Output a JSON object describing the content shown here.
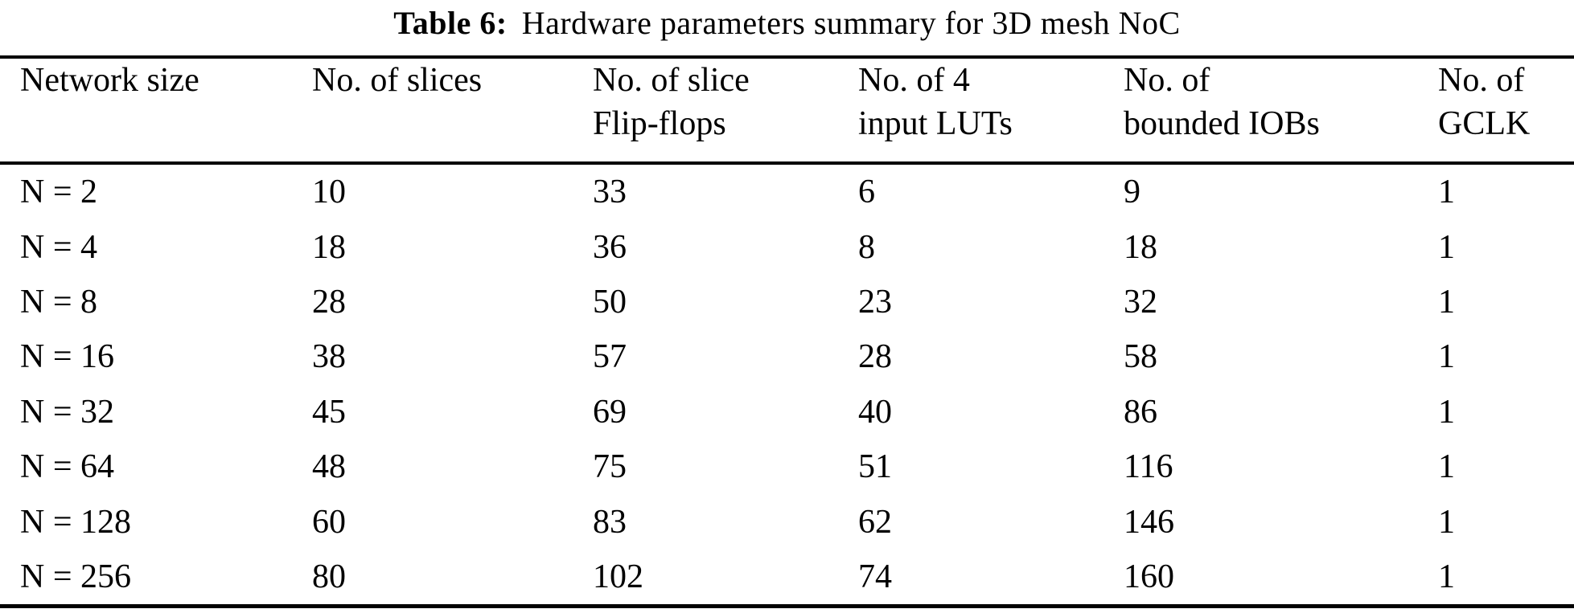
{
  "caption": {
    "label": "Table 6:",
    "text": "Hardware parameters summary for 3D mesh NoC"
  },
  "table": {
    "columns": [
      {
        "key": "network-size",
        "line1": "Network size",
        "line2": ""
      },
      {
        "key": "slices",
        "line1": "No. of slices",
        "line2": ""
      },
      {
        "key": "slice-flip-flops",
        "line1": "No. of slice",
        "line2": "Flip-flops"
      },
      {
        "key": "input-luts",
        "line1": "No. of 4",
        "line2": "input LUTs"
      },
      {
        "key": "bounded-iobs",
        "line1": "No. of",
        "line2": "bounded IOBs"
      },
      {
        "key": "gclk",
        "line1": "No. of",
        "line2": "GCLK"
      }
    ],
    "rows": [
      [
        "N = 2",
        "10",
        "33",
        "6",
        "9",
        "1"
      ],
      [
        "N = 4",
        "18",
        "36",
        "8",
        "18",
        "1"
      ],
      [
        "N = 8",
        "28",
        "50",
        "23",
        "32",
        "1"
      ],
      [
        "N = 16",
        "38",
        "57",
        "28",
        "58",
        "1"
      ],
      [
        "N = 32",
        "45",
        "69",
        "40",
        "86",
        "1"
      ],
      [
        "N = 64",
        "48",
        "75",
        "51",
        "116",
        "1"
      ],
      [
        "N = 128",
        "60",
        "83",
        "62",
        "146",
        "1"
      ],
      [
        "N = 256",
        "80",
        "102",
        "74",
        "160",
        "1"
      ]
    ]
  },
  "colors": {
    "background": "#ffffff",
    "text": "#000000",
    "rule": "#000000"
  }
}
